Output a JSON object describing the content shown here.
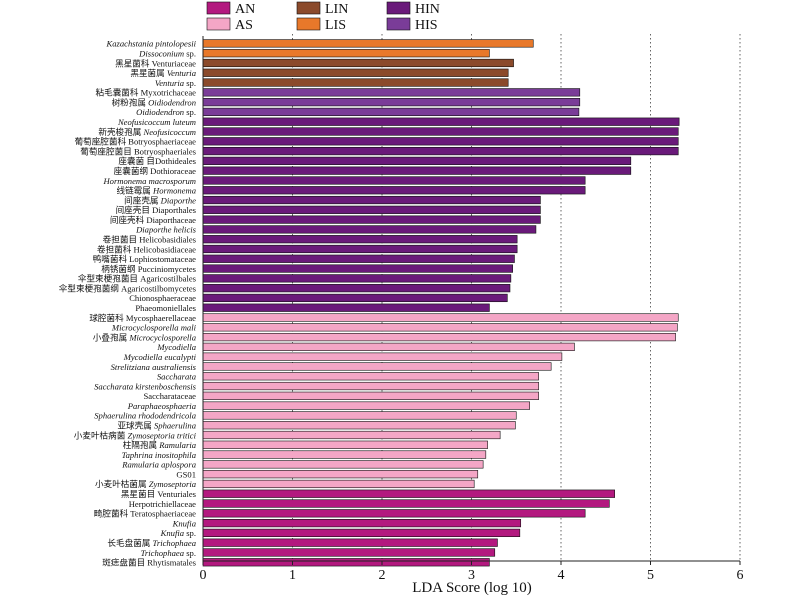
{
  "chart_data": {
    "type": "bar",
    "orientation": "horizontal",
    "xlabel": "LDA Score (log 10)",
    "xlim": [
      0,
      6
    ],
    "xticks": [
      0,
      1,
      2,
      3,
      4,
      5,
      6
    ],
    "grid": "vertical dotted",
    "legend_position": "top",
    "groups": [
      {
        "name": "AN",
        "color": "#b3197f"
      },
      {
        "name": "AS",
        "color": "#f4a6c6"
      },
      {
        "name": "LIN",
        "color": "#8b4a2b"
      },
      {
        "name": "LIS",
        "color": "#e8782a"
      },
      {
        "name": "HIN",
        "color": "#6a1a7a"
      },
      {
        "name": "HIS",
        "color": "#7a3c98"
      }
    ],
    "bars": [
      {
        "label": [
          {
            "t": "Kazachstania pintolopesii",
            "i": true
          }
        ],
        "value": 3.69,
        "group": "LIS"
      },
      {
        "label": [
          {
            "t": "Dissoconium",
            "i": true
          },
          {
            "t": " sp.",
            "i": false
          }
        ],
        "value": 3.2,
        "group": "LIS"
      },
      {
        "label": [
          {
            "t": "黑星菌科 Venturiaceae",
            "i": false
          }
        ],
        "value": 3.47,
        "group": "LIN"
      },
      {
        "label": [
          {
            "t": "黑星菌属 ",
            "i": false
          },
          {
            "t": "Venturia",
            "i": true
          }
        ],
        "value": 3.41,
        "group": "LIN"
      },
      {
        "label": [
          {
            "t": "Venturia",
            "i": true
          },
          {
            "t": " sp.",
            "i": false
          }
        ],
        "value": 3.41,
        "group": "LIN"
      },
      {
        "label": [
          {
            "t": "粘毛囊菌科 Myxotrichaceae",
            "i": false
          }
        ],
        "value": 4.21,
        "group": "HIS"
      },
      {
        "label": [
          {
            "t": "树粉孢属 ",
            "i": false
          },
          {
            "t": "Oidiodendron",
            "i": true
          }
        ],
        "value": 4.21,
        "group": "HIS"
      },
      {
        "label": [
          {
            "t": "Oidiodendron",
            "i": true
          },
          {
            "t": " sp.",
            "i": false
          }
        ],
        "value": 4.2,
        "group": "HIS"
      },
      {
        "label": [
          {
            "t": "Neofusicoccum luteum",
            "i": true
          }
        ],
        "value": 5.32,
        "group": "HIN"
      },
      {
        "label": [
          {
            "t": "新壳梭孢属 ",
            "i": false
          },
          {
            "t": "Neofusicoccum",
            "i": true
          }
        ],
        "value": 5.31,
        "group": "HIN"
      },
      {
        "label": [
          {
            "t": "葡萄座腔菌科 Botryosphaeriaceae",
            "i": false
          }
        ],
        "value": 5.31,
        "group": "HIN"
      },
      {
        "label": [
          {
            "t": "葡萄座腔菌目 Botryosphaeriales",
            "i": false
          }
        ],
        "value": 5.31,
        "group": "HIN"
      },
      {
        "label": [
          {
            "t": "座囊菌 目Dothideales",
            "i": false
          }
        ],
        "value": 4.78,
        "group": "HIN"
      },
      {
        "label": [
          {
            "t": "座囊菌纲 Dothioraceae",
            "i": false
          }
        ],
        "value": 4.78,
        "group": "HIN"
      },
      {
        "label": [
          {
            "t": "Hormonema macrosporum",
            "i": true
          }
        ],
        "value": 4.27,
        "group": "HIN"
      },
      {
        "label": [
          {
            "t": "线链霉属 ",
            "i": false
          },
          {
            "t": "Hormonema",
            "i": true
          }
        ],
        "value": 4.27,
        "group": "HIN"
      },
      {
        "label": [
          {
            "t": "间座壳属 ",
            "i": false
          },
          {
            "t": "Diaporthe",
            "i": true
          }
        ],
        "value": 3.77,
        "group": "HIN"
      },
      {
        "label": [
          {
            "t": "间座壳目 Diaporthales",
            "i": false
          }
        ],
        "value": 3.77,
        "group": "HIN"
      },
      {
        "label": [
          {
            "t": "间座壳科 Diaporthaceae",
            "i": false
          }
        ],
        "value": 3.77,
        "group": "HIN"
      },
      {
        "label": [
          {
            "t": "Diaporthe helicis",
            "i": true
          }
        ],
        "value": 3.72,
        "group": "HIN"
      },
      {
        "label": [
          {
            "t": "卷担菌目 Helicobasidiales",
            "i": false
          }
        ],
        "value": 3.51,
        "group": "HIN"
      },
      {
        "label": [
          {
            "t": "卷担菌科 Helicobasidiaceae",
            "i": false
          }
        ],
        "value": 3.51,
        "group": "HIN"
      },
      {
        "label": [
          {
            "t": "鸭嘴菌科 Lophiostomataceae",
            "i": false
          }
        ],
        "value": 3.48,
        "group": "HIN"
      },
      {
        "label": [
          {
            "t": "柄锈菌纲 Pucciniomycetes",
            "i": false
          }
        ],
        "value": 3.46,
        "group": "HIN"
      },
      {
        "label": [
          {
            "t": "伞型束梗孢菌目 Agaricostilbales",
            "i": false
          }
        ],
        "value": 3.44,
        "group": "HIN"
      },
      {
        "label": [
          {
            "t": "伞型束梗孢菌纲 Agaricostilbomycetes",
            "i": false
          }
        ],
        "value": 3.43,
        "group": "HIN"
      },
      {
        "label": [
          {
            "t": "Chionosphaeraceae",
            "i": false
          }
        ],
        "value": 3.4,
        "group": "HIN"
      },
      {
        "label": [
          {
            "t": "Phaeomoniellales",
            "i": false
          }
        ],
        "value": 3.2,
        "group": "HIN"
      },
      {
        "label": [
          {
            "t": "球腔菌科 Mycosphaerellaceae",
            "i": false
          }
        ],
        "value": 5.31,
        "group": "AS"
      },
      {
        "label": [
          {
            "t": "Microcyclosporella mali",
            "i": true
          }
        ],
        "value": 5.3,
        "group": "AS"
      },
      {
        "label": [
          {
            "t": "小叠孢属 ",
            "i": false
          },
          {
            "t": "Microcyclosporella",
            "i": true
          }
        ],
        "value": 5.28,
        "group": "AS"
      },
      {
        "label": [
          {
            "t": "Mycodiella",
            "i": true
          }
        ],
        "value": 4.15,
        "group": "AS"
      },
      {
        "label": [
          {
            "t": "Mycodiella eucalypti",
            "i": true
          }
        ],
        "value": 4.01,
        "group": "AS"
      },
      {
        "label": [
          {
            "t": "Strelitziana australiensis",
            "i": true
          }
        ],
        "value": 3.89,
        "group": "AS"
      },
      {
        "label": [
          {
            "t": "Saccharata",
            "i": true
          }
        ],
        "value": 3.75,
        "group": "AS"
      },
      {
        "label": [
          {
            "t": "Saccharata kirstenboschensis",
            "i": true
          }
        ],
        "value": 3.75,
        "group": "AS"
      },
      {
        "label": [
          {
            "t": "Saccharataceae",
            "i": false
          }
        ],
        "value": 3.75,
        "group": "AS"
      },
      {
        "label": [
          {
            "t": "Paraphaeosphaeria",
            "i": true
          }
        ],
        "value": 3.65,
        "group": "AS"
      },
      {
        "label": [
          {
            "t": "Sphaerulina rhododendricola",
            "i": true
          }
        ],
        "value": 3.5,
        "group": "AS"
      },
      {
        "label": [
          {
            "t": "亚球壳属 ",
            "i": false
          },
          {
            "t": "Sphaerulina",
            "i": true
          }
        ],
        "value": 3.49,
        "group": "AS"
      },
      {
        "label": [
          {
            "t": "小麦叶枯病菌 ",
            "i": false
          },
          {
            "t": "Zymoseptoria tritici",
            "i": true
          }
        ],
        "value": 3.32,
        "group": "AS"
      },
      {
        "label": [
          {
            "t": "柱隔孢属 ",
            "i": false
          },
          {
            "t": "Ramularia",
            "i": true
          }
        ],
        "value": 3.18,
        "group": "AS"
      },
      {
        "label": [
          {
            "t": "Taphrina inositophila",
            "i": true
          }
        ],
        "value": 3.16,
        "group": "AS"
      },
      {
        "label": [
          {
            "t": "Ramularia aplospora",
            "i": true
          }
        ],
        "value": 3.13,
        "group": "AS"
      },
      {
        "label": [
          {
            "t": "GS01",
            "i": false
          }
        ],
        "value": 3.07,
        "group": "AS"
      },
      {
        "label": [
          {
            "t": "小麦叶枯菌属 ",
            "i": false
          },
          {
            "t": "Zymoseptoria",
            "i": true
          }
        ],
        "value": 3.03,
        "group": "AS"
      },
      {
        "label": [
          {
            "t": "黑星菌目 Venturiales",
            "i": false
          }
        ],
        "value": 4.6,
        "group": "AN"
      },
      {
        "label": [
          {
            "t": "Herpotrichiellaceae",
            "i": false
          }
        ],
        "value": 4.54,
        "group": "AN"
      },
      {
        "label": [
          {
            "t": "畸腔菌科 Teratosphaeriaceae",
            "i": false
          }
        ],
        "value": 4.27,
        "group": "AN"
      },
      {
        "label": [
          {
            "t": "Knufia",
            "i": true
          }
        ],
        "value": 3.55,
        "group": "AN"
      },
      {
        "label": [
          {
            "t": "Knufia",
            "i": true
          },
          {
            "t": " sp.",
            "i": false
          }
        ],
        "value": 3.54,
        "group": "AN"
      },
      {
        "label": [
          {
            "t": "长毛盘菌属 ",
            "i": false
          },
          {
            "t": "Trichophaea",
            "i": true
          }
        ],
        "value": 3.29,
        "group": "AN"
      },
      {
        "label": [
          {
            "t": "Trichophaea",
            "i": true
          },
          {
            "t": " sp.",
            "i": false
          }
        ],
        "value": 3.26,
        "group": "AN"
      },
      {
        "label": [
          {
            "t": "斑痣盘菌目 Rhytismatales",
            "i": false
          }
        ],
        "value": 3.2,
        "group": "AN"
      }
    ]
  }
}
